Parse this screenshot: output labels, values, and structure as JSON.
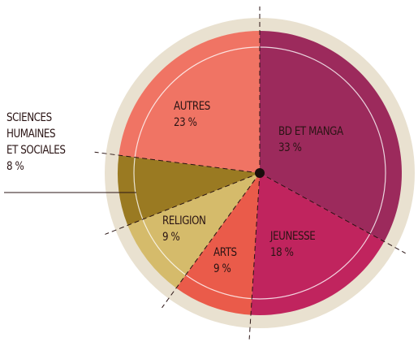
{
  "chart_data": {
    "type": "pie",
    "categories": [
      "BD ET MANGA",
      "JEUNESSE",
      "ARTS",
      "RELIGION",
      "SCIENCES\nHUMAINES\nET SOCIALES",
      "AUTRES"
    ],
    "values": [
      33,
      18,
      9,
      9,
      8,
      23
    ],
    "value_labels": [
      "33 %",
      "18 %",
      "9 %",
      "9 %",
      "8 %",
      "23 %"
    ],
    "colors": [
      "#9c2a5c",
      "#c0245e",
      "#ea5b4a",
      "#d5bb6b",
      "#9a7a22",
      "#f07464"
    ]
  }
}
